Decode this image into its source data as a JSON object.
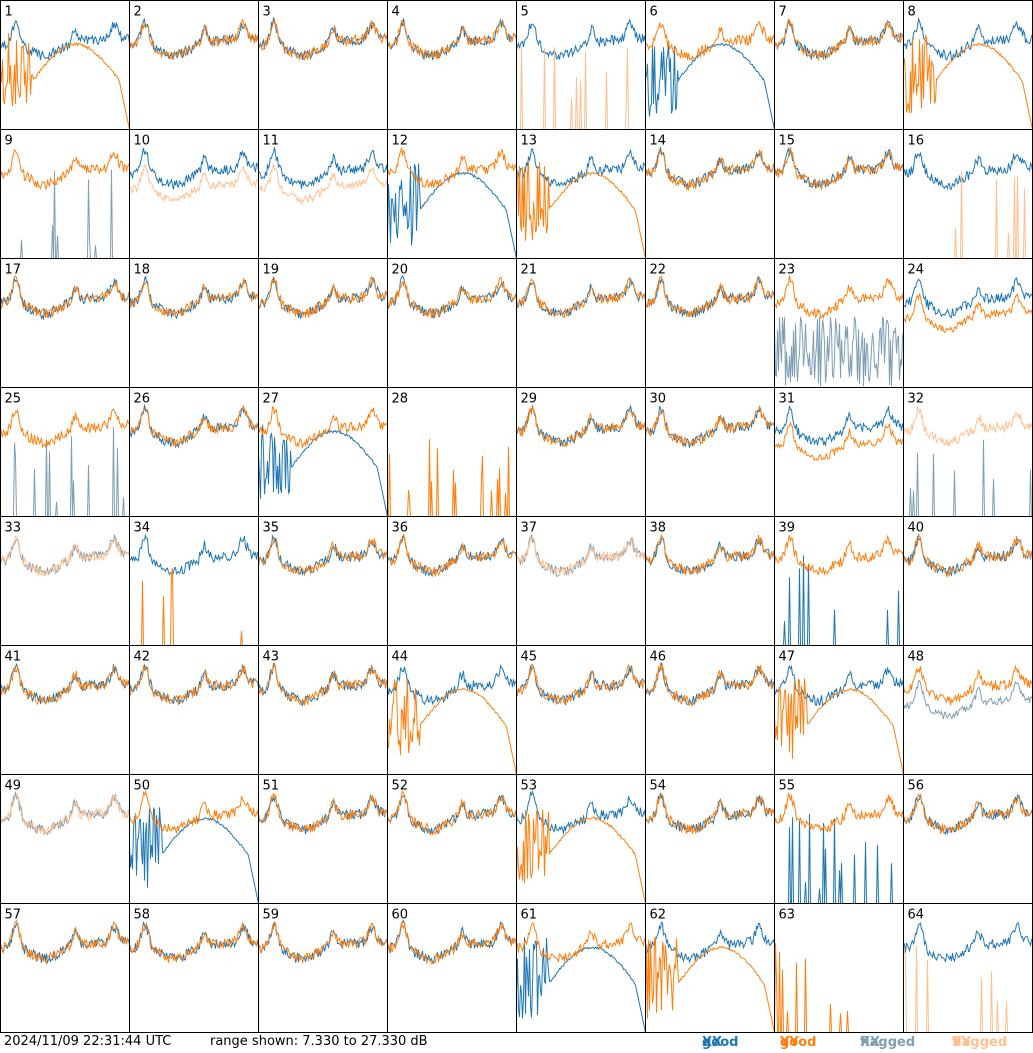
{
  "footer": {
    "timestamp": "2024/11/09 22:31:44 UTC",
    "range_text": "range shown: 7.330 to 27.330 dB"
  },
  "legend": [
    {
      "word": "good",
      "pol": "XX",
      "color": "#1f77b4"
    },
    {
      "word": "good",
      "pol": "YY",
      "color": "#ff7f0e"
    },
    {
      "word": "flagged",
      "pol": "XX",
      "color": "#7f9fb4"
    },
    {
      "word": "flagged",
      "pol": "YY",
      "color": "#ffbf8f"
    }
  ],
  "colors": {
    "good_xx": "#1f77b4",
    "good_yy": "#ff7f0e",
    "flagged_xx": "#7f9fb4",
    "flagged_yy": "#ffbf8f",
    "grid_border": "#000000"
  },
  "chart_data": {
    "type": "line",
    "layout": "8x8 small multiples",
    "ylim": [
      7.33,
      27.33
    ],
    "y_unit": "dB",
    "panels": [
      {
        "id": "1",
        "xx": "good",
        "yy": "good",
        "xx_profile": "normal",
        "yy_profile": "broken"
      },
      {
        "id": "2",
        "xx": "good",
        "yy": "good",
        "xx_profile": "normal",
        "yy_profile": "normal"
      },
      {
        "id": "3",
        "xx": "good",
        "yy": "good",
        "xx_profile": "normal",
        "yy_profile": "normal"
      },
      {
        "id": "4",
        "xx": "good",
        "yy": "good",
        "xx_profile": "normal",
        "yy_profile": "normal"
      },
      {
        "id": "5",
        "xx": "good",
        "yy": "flagged",
        "xx_profile": "normal",
        "yy_profile": "spikes"
      },
      {
        "id": "6",
        "xx": "good",
        "yy": "good",
        "xx_profile": "broken",
        "yy_profile": "normal"
      },
      {
        "id": "7",
        "xx": "good",
        "yy": "good",
        "xx_profile": "normal",
        "yy_profile": "normal"
      },
      {
        "id": "8",
        "xx": "good",
        "yy": "good",
        "xx_profile": "normal",
        "yy_profile": "broken"
      },
      {
        "id": "9",
        "xx": "flagged",
        "yy": "good",
        "xx_profile": "spikes",
        "yy_profile": "normal"
      },
      {
        "id": "10",
        "xx": "good",
        "yy": "flagged",
        "xx_profile": "normal",
        "yy_profile": "low"
      },
      {
        "id": "11",
        "xx": "good",
        "yy": "flagged",
        "xx_profile": "normal",
        "yy_profile": "low"
      },
      {
        "id": "12",
        "xx": "good",
        "yy": "good",
        "xx_profile": "broken",
        "yy_profile": "normal"
      },
      {
        "id": "13",
        "xx": "good",
        "yy": "good",
        "xx_profile": "normal",
        "yy_profile": "broken"
      },
      {
        "id": "14",
        "xx": "good",
        "yy": "good",
        "xx_profile": "normal",
        "yy_profile": "normal"
      },
      {
        "id": "15",
        "xx": "good",
        "yy": "good",
        "xx_profile": "normal",
        "yy_profile": "normal"
      },
      {
        "id": "16",
        "xx": "good",
        "yy": "flagged",
        "xx_profile": "normal",
        "yy_profile": "spikes"
      },
      {
        "id": "17",
        "xx": "good",
        "yy": "good",
        "xx_profile": "normal",
        "yy_profile": "normal"
      },
      {
        "id": "18",
        "xx": "good",
        "yy": "good",
        "xx_profile": "normal",
        "yy_profile": "normal"
      },
      {
        "id": "19",
        "xx": "good",
        "yy": "good",
        "xx_profile": "normal",
        "yy_profile": "normal"
      },
      {
        "id": "20",
        "xx": "good",
        "yy": "good",
        "xx_profile": "normal",
        "yy_profile": "normal"
      },
      {
        "id": "21",
        "xx": "good",
        "yy": "good",
        "xx_profile": "normal",
        "yy_profile": "normal"
      },
      {
        "id": "22",
        "xx": "good",
        "yy": "good",
        "xx_profile": "normal",
        "yy_profile": "normal"
      },
      {
        "id": "23",
        "xx": "flagged",
        "yy": "good",
        "xx_profile": "noise",
        "yy_profile": "normal"
      },
      {
        "id": "24",
        "xx": "good",
        "yy": "good",
        "xx_profile": "normal",
        "yy_profile": "low"
      },
      {
        "id": "25",
        "xx": "flagged",
        "yy": "good",
        "xx_profile": "spikes",
        "yy_profile": "normal"
      },
      {
        "id": "26",
        "xx": "good",
        "yy": "good",
        "xx_profile": "normal",
        "yy_profile": "normal"
      },
      {
        "id": "27",
        "xx": "good",
        "yy": "good",
        "xx_profile": "broken",
        "yy_profile": "normal"
      },
      {
        "id": "28",
        "xx": "flagged",
        "yy": "good",
        "xx_profile": "none",
        "yy_profile": "spikes"
      },
      {
        "id": "29",
        "xx": "good",
        "yy": "good",
        "xx_profile": "normal",
        "yy_profile": "normal"
      },
      {
        "id": "30",
        "xx": "good",
        "yy": "good",
        "xx_profile": "normal",
        "yy_profile": "normal"
      },
      {
        "id": "31",
        "xx": "good",
        "yy": "good",
        "xx_profile": "normal",
        "yy_profile": "low"
      },
      {
        "id": "32",
        "xx": "flagged",
        "yy": "flagged",
        "xx_profile": "spikes",
        "yy_profile": "normal"
      },
      {
        "id": "33",
        "xx": "flagged",
        "yy": "flagged",
        "xx_profile": "normal",
        "yy_profile": "normal"
      },
      {
        "id": "34",
        "xx": "good",
        "yy": "good",
        "xx_profile": "normal",
        "yy_profile": "spikes"
      },
      {
        "id": "35",
        "xx": "good",
        "yy": "good",
        "xx_profile": "normal",
        "yy_profile": "normal"
      },
      {
        "id": "36",
        "xx": "good",
        "yy": "good",
        "xx_profile": "normal",
        "yy_profile": "normal"
      },
      {
        "id": "37",
        "xx": "flagged",
        "yy": "flagged",
        "xx_profile": "normal",
        "yy_profile": "normal"
      },
      {
        "id": "38",
        "xx": "good",
        "yy": "good",
        "xx_profile": "normal",
        "yy_profile": "normal"
      },
      {
        "id": "39",
        "xx": "good",
        "yy": "good",
        "xx_profile": "spikes",
        "yy_profile": "normal"
      },
      {
        "id": "40",
        "xx": "good",
        "yy": "good",
        "xx_profile": "normal",
        "yy_profile": "normal"
      },
      {
        "id": "41",
        "xx": "good",
        "yy": "good",
        "xx_profile": "normal",
        "yy_profile": "normal"
      },
      {
        "id": "42",
        "xx": "good",
        "yy": "good",
        "xx_profile": "normal",
        "yy_profile": "normal"
      },
      {
        "id": "43",
        "xx": "good",
        "yy": "good",
        "xx_profile": "normal",
        "yy_profile": "normal"
      },
      {
        "id": "44",
        "xx": "good",
        "yy": "good",
        "xx_profile": "normal",
        "yy_profile": "broken"
      },
      {
        "id": "45",
        "xx": "good",
        "yy": "good",
        "xx_profile": "normal",
        "yy_profile": "normal"
      },
      {
        "id": "46",
        "xx": "good",
        "yy": "good",
        "xx_profile": "normal",
        "yy_profile": "normal"
      },
      {
        "id": "47",
        "xx": "good",
        "yy": "good",
        "xx_profile": "normal",
        "yy_profile": "broken"
      },
      {
        "id": "48",
        "xx": "flagged",
        "yy": "good",
        "xx_profile": "low",
        "yy_profile": "normal"
      },
      {
        "id": "49",
        "xx": "flagged",
        "yy": "flagged",
        "xx_profile": "normal",
        "yy_profile": "normal"
      },
      {
        "id": "50",
        "xx": "good",
        "yy": "good",
        "xx_profile": "broken",
        "yy_profile": "normal"
      },
      {
        "id": "51",
        "xx": "good",
        "yy": "good",
        "xx_profile": "normal",
        "yy_profile": "normal"
      },
      {
        "id": "52",
        "xx": "good",
        "yy": "good",
        "xx_profile": "normal",
        "yy_profile": "normal"
      },
      {
        "id": "53",
        "xx": "good",
        "yy": "good",
        "xx_profile": "normal",
        "yy_profile": "broken"
      },
      {
        "id": "54",
        "xx": "good",
        "yy": "good",
        "xx_profile": "normal",
        "yy_profile": "normal"
      },
      {
        "id": "55",
        "xx": "good",
        "yy": "good",
        "xx_profile": "spikes",
        "yy_profile": "normal"
      },
      {
        "id": "56",
        "xx": "good",
        "yy": "good",
        "xx_profile": "normal",
        "yy_profile": "normal"
      },
      {
        "id": "57",
        "xx": "good",
        "yy": "good",
        "xx_profile": "normal",
        "yy_profile": "normal"
      },
      {
        "id": "58",
        "xx": "good",
        "yy": "good",
        "xx_profile": "normal",
        "yy_profile": "normal"
      },
      {
        "id": "59",
        "xx": "good",
        "yy": "good",
        "xx_profile": "normal",
        "yy_profile": "normal"
      },
      {
        "id": "60",
        "xx": "good",
        "yy": "good",
        "xx_profile": "normal",
        "yy_profile": "normal"
      },
      {
        "id": "61",
        "xx": "good",
        "yy": "good",
        "xx_profile": "broken",
        "yy_profile": "normal"
      },
      {
        "id": "62",
        "xx": "good",
        "yy": "good",
        "xx_profile": "normal",
        "yy_profile": "broken"
      },
      {
        "id": "63",
        "xx": "flagged",
        "yy": "good",
        "xx_profile": "none",
        "yy_profile": "spikes"
      },
      {
        "id": "64",
        "xx": "good",
        "yy": "flagged",
        "xx_profile": "normal",
        "yy_profile": "spikes"
      }
    ]
  }
}
